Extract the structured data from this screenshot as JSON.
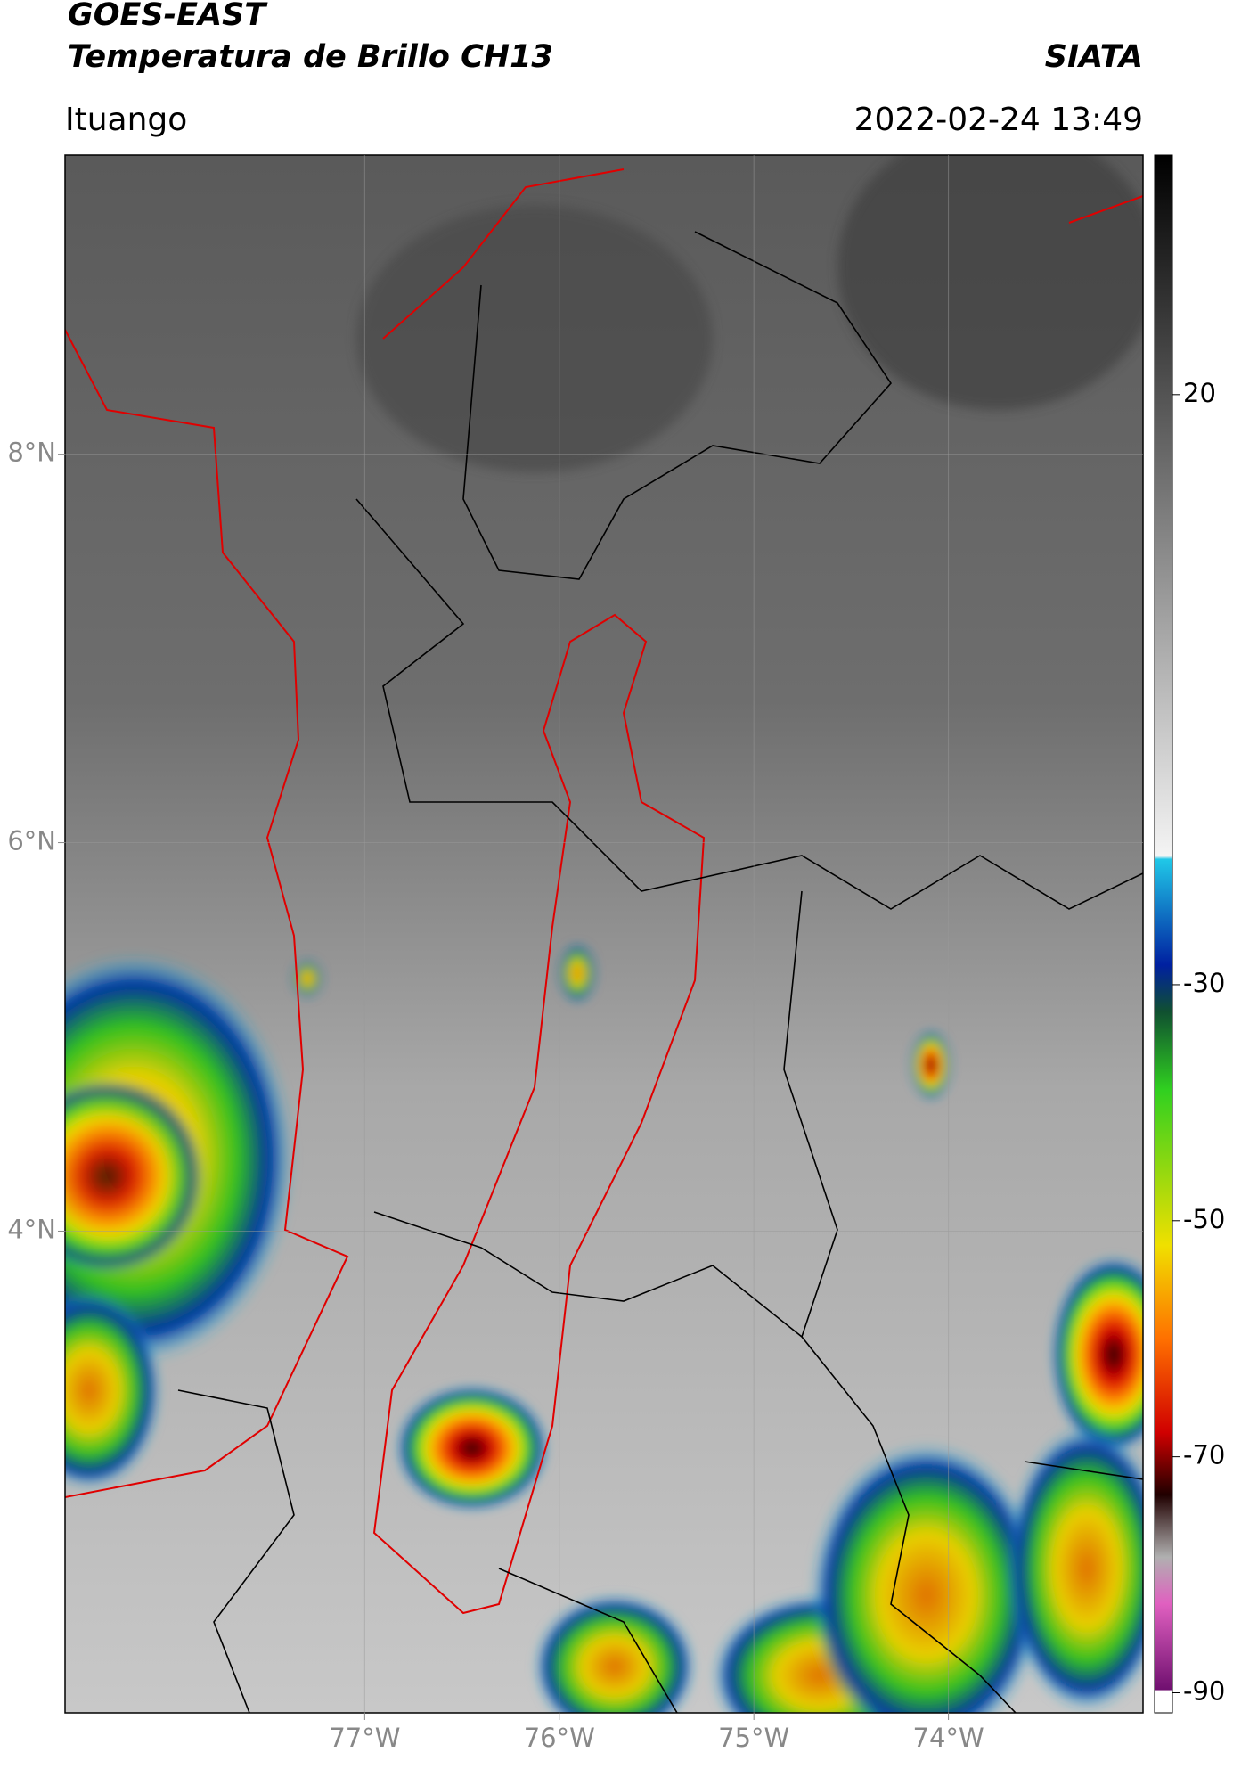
{
  "chart_data": {
    "type": "map",
    "title": "GOES-EAST",
    "subtitle": "Temperatura de Brillo CH13",
    "source": "SIATA",
    "location": "Ituango",
    "timestamp": "2022-02-24 13:49",
    "xlim": [
      -78.54,
      -73.0
    ],
    "ylim": [
      1.52,
      9.54
    ],
    "xticks": [
      {
        "value": -77,
        "label": "77°W"
      },
      {
        "value": -76,
        "label": "76°W"
      },
      {
        "value": -75,
        "label": "75°W"
      },
      {
        "value": -74,
        "label": "74°W"
      }
    ],
    "yticks": [
      {
        "value": 8,
        "label": "8°N"
      },
      {
        "value": 6,
        "label": "6°N"
      },
      {
        "value": 4,
        "label": "4°N"
      }
    ],
    "grid": true,
    "colorbar": {
      "lim": [
        -91.7,
        40.3
      ],
      "ticks": [
        20,
        -30,
        -50,
        -70,
        -90
      ]
    }
  }
}
